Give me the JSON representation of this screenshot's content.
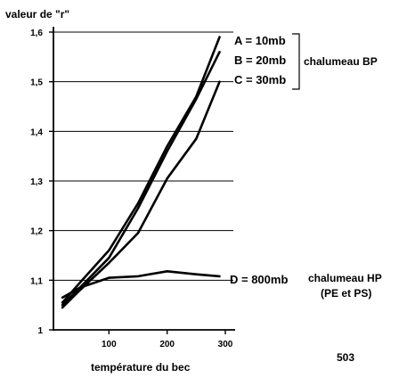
{
  "chart_data": {
    "type": "line",
    "ylabel": "valeur de \"r\"",
    "xlabel": "température du bec",
    "xlim": [
      0,
      310
    ],
    "ylim": [
      1,
      1.62
    ],
    "x_ticks": [
      "100",
      "200",
      "300"
    ],
    "y_ticks": [
      "1",
      "1,1",
      "1,2",
      "1,3",
      "1,4",
      "1,5",
      "1,6"
    ],
    "grid": "horizontal",
    "series": [
      {
        "name": "A = 10mb",
        "x": [
          20,
          50,
          100,
          150,
          200,
          250,
          290
        ],
        "y": [
          1.055,
          1.095,
          1.16,
          1.255,
          1.37,
          1.47,
          1.59
        ]
      },
      {
        "name": "B = 20mb",
        "x": [
          20,
          50,
          100,
          150,
          200,
          250,
          290
        ],
        "y": [
          1.05,
          1.085,
          1.145,
          1.245,
          1.36,
          1.465,
          1.56
        ]
      },
      {
        "name": "C = 30mb",
        "x": [
          20,
          50,
          100,
          150,
          200,
          250,
          290
        ],
        "y": [
          1.045,
          1.08,
          1.135,
          1.195,
          1.305,
          1.385,
          1.5
        ]
      },
      {
        "name": "D = 800mb",
        "x": [
          20,
          50,
          100,
          150,
          200,
          250,
          290
        ],
        "y": [
          1.065,
          1.085,
          1.105,
          1.108,
          1.118,
          1.112,
          1.108
        ]
      }
    ],
    "group_labels": {
      "bp": "chalumeau BP",
      "hp": "chalumeau HP",
      "hp_sub": "(PE et PS)"
    },
    "page_number": "503"
  }
}
